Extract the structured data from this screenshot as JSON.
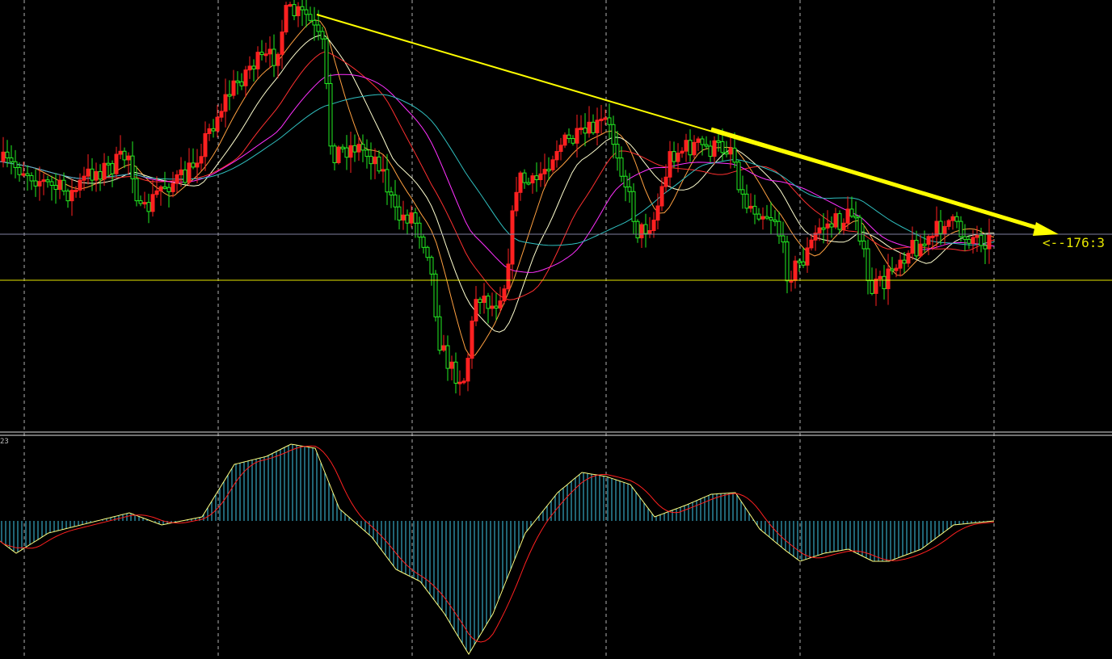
{
  "chart_data": [
    {
      "type": "candlestick",
      "annotation": {
        "price_label": "<--176:3"
      },
      "colors": {
        "up": "#ff2020",
        "down": "#22ee22",
        "trendline": "#ffff00",
        "grid": "#d0d0d0",
        "price_line": "#7f7fa0",
        "support_line": "#e6e600"
      },
      "ma_colors": [
        "#ffa040",
        "#ffffd0",
        "#ff3030",
        "#ff30ff",
        "#30c0c0"
      ],
      "grid": true
    },
    {
      "type": "macd",
      "label": "23",
      "colors": {
        "histogram": "#40c8e8",
        "macd": "#ffff80",
        "signal": "#ff2020"
      }
    }
  ]
}
